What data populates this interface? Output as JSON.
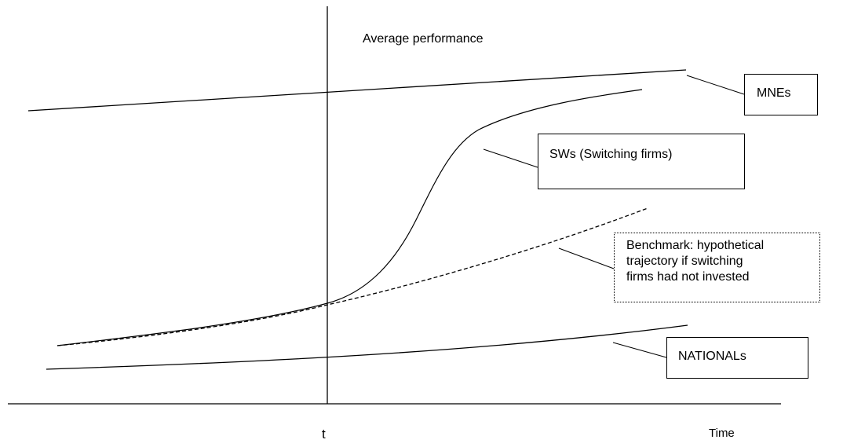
{
  "labels": {
    "y_axis": "Average performance",
    "x_axis": "Time",
    "t_marker": "t"
  },
  "boxes": {
    "mnes": "MNEs",
    "sws": "SWs (Switching firms)",
    "benchmark_lines": [
      "Benchmark: hypothetical",
      "trajectory if switching",
      "firms had not invested"
    ],
    "nationals": "NATIONALs"
  },
  "colors": {
    "line": "#000000",
    "background": "#ffffff"
  }
}
